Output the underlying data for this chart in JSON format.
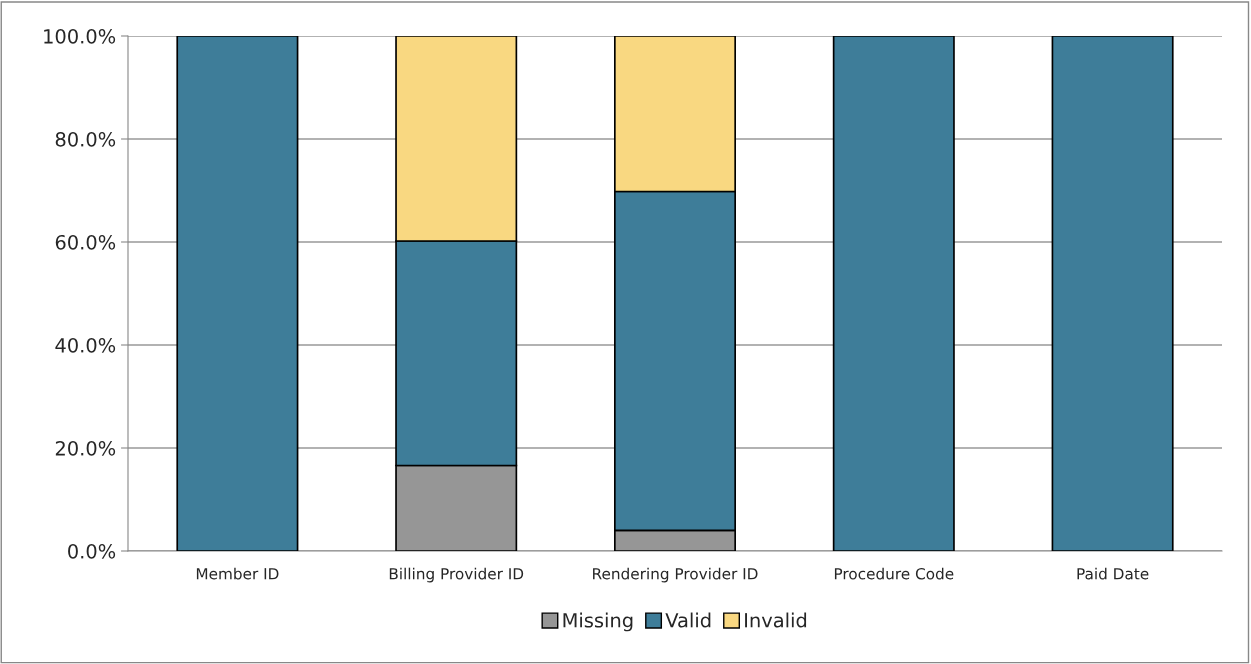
{
  "chart_data": {
    "type": "bar",
    "stacked": true,
    "categories": [
      "Member ID",
      "Billing Provider ID",
      "Rendering Provider ID",
      "Procedure Code",
      "Paid Date"
    ],
    "series": [
      {
        "name": "Missing",
        "color": "#969696",
        "values": [
          null,
          16.6,
          4.0,
          null,
          null
        ]
      },
      {
        "name": "Valid",
        "color": "#3e7d99",
        "values": [
          100,
          43.6,
          65.8,
          100,
          100
        ]
      },
      {
        "name": "Invalid",
        "color": "#f9d881",
        "values": [
          null,
          39.8,
          30.2,
          null,
          null
        ]
      }
    ],
    "ylim": [
      0,
      100
    ],
    "yticks": [
      {
        "value": 0,
        "label": "0.0%"
      },
      {
        "value": 20,
        "label": "20.0%"
      },
      {
        "value": 40,
        "label": "40.0%"
      },
      {
        "value": 60,
        "label": "60.0%"
      },
      {
        "value": 80,
        "label": "80.0%"
      },
      {
        "value": 100,
        "label": "100.0%"
      }
    ],
    "grid": "y",
    "legend": "bottom"
  }
}
